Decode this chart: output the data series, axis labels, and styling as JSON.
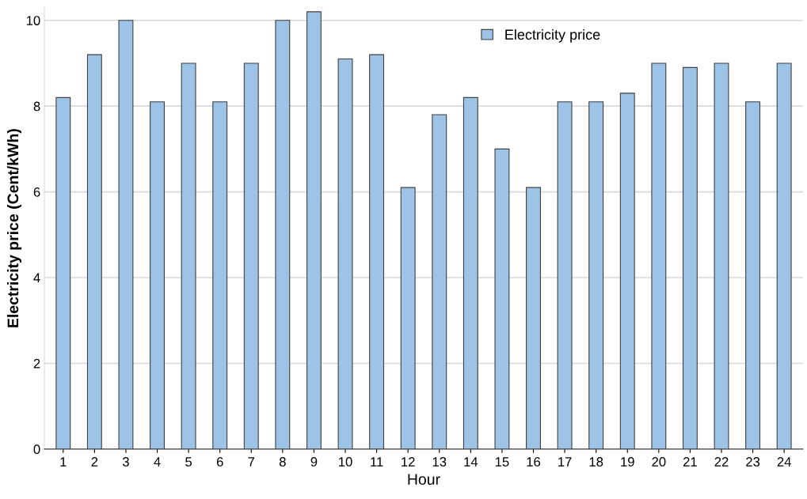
{
  "chart_data": {
    "type": "bar",
    "xlabel": "Hour",
    "ylabel": "Electricity price (Cent/kWh)",
    "categories": [
      "1",
      "2",
      "3",
      "4",
      "5",
      "6",
      "7",
      "8",
      "9",
      "10",
      "11",
      "12",
      "13",
      "14",
      "15",
      "16",
      "17",
      "18",
      "19",
      "20",
      "21",
      "22",
      "23",
      "24"
    ],
    "series": [
      {
        "name": "Electricity price",
        "color": "#9dc3e6",
        "values": [
          8.2,
          9.2,
          10,
          8.1,
          9.0,
          8.1,
          9.0,
          10,
          10.2,
          9.1,
          9.2,
          6.1,
          7.8,
          8.2,
          7.0,
          6.1,
          8.1,
          8.1,
          8.3,
          9.0,
          8.9,
          9.0,
          8.1,
          9.0
        ]
      }
    ],
    "ylim": [
      0,
      10.3
    ],
    "yticks": [
      0,
      2,
      4,
      6,
      8,
      10
    ],
    "grid": "y",
    "legend": "top right"
  }
}
